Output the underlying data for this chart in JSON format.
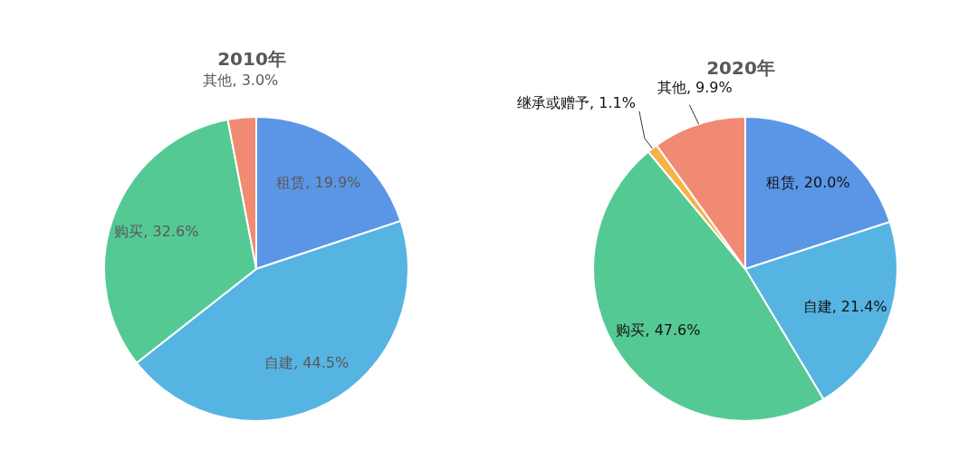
{
  "chart_data": [
    {
      "type": "pie",
      "title": "2010年",
      "categories": [
        "租赁",
        "自建",
        "购买",
        "其他"
      ],
      "values": [
        19.9,
        44.5,
        32.6,
        3.0
      ],
      "value_labels": [
        "19.9%",
        "44.5%",
        "32.6%",
        "3.0%"
      ],
      "colors": [
        "#5b96e6",
        "#56b4e3",
        "#55c994",
        "#f08a72"
      ],
      "legend": false
    },
    {
      "type": "pie",
      "title": "2020年",
      "categories": [
        "租赁",
        "自建",
        "购买",
        "继承或赠予",
        "其他"
      ],
      "values": [
        20.0,
        21.4,
        47.6,
        1.1,
        9.9
      ],
      "value_labels": [
        "20.0%",
        "21.4%",
        "47.6%",
        "1.1%",
        "9.9%"
      ],
      "colors": [
        "#5b96e6",
        "#56b4e3",
        "#55c994",
        "#f7b24a",
        "#f08a72"
      ],
      "legend": false
    }
  ]
}
